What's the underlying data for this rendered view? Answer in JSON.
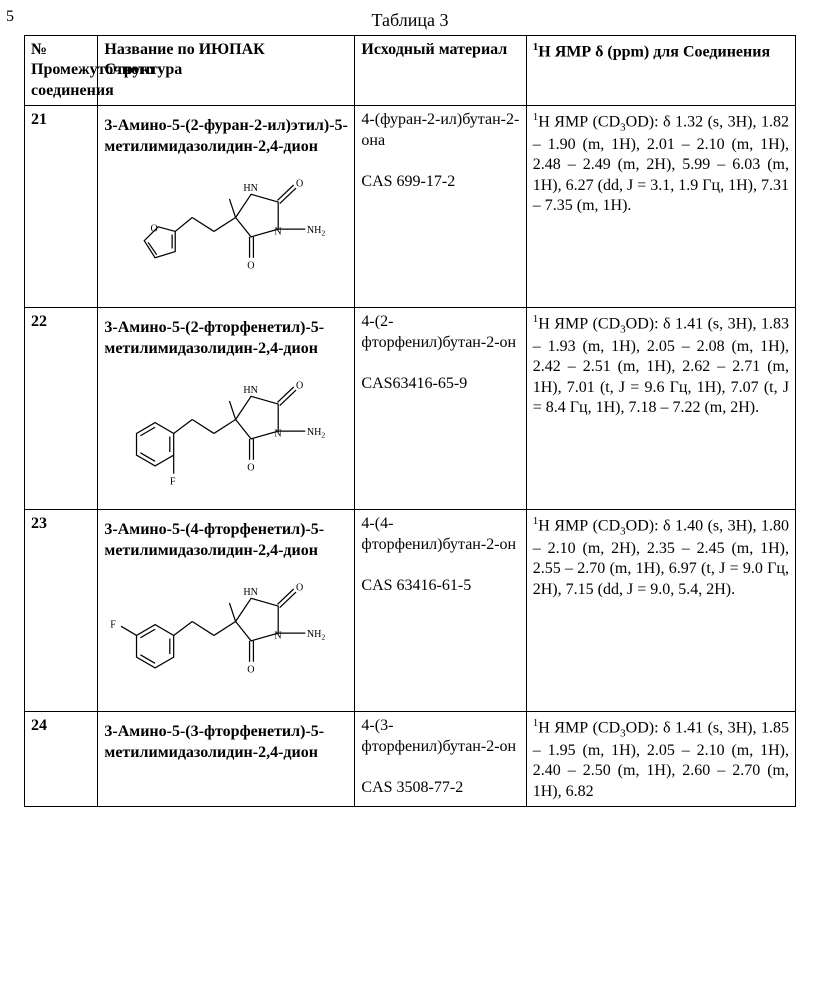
{
  "page_number": "5",
  "table_caption": "Таблица 3",
  "headers": {
    "col1": "№ Промежуточного соединения",
    "col2_line1": "Название по ИЮПАК",
    "col2_line2": "Структура",
    "col3": "Исходный материал",
    "col4_html": "<span class='sup'>1</span>H ЯМР δ (ppm) для Соединения"
  },
  "rows": [
    {
      "num": "21",
      "iupac": "3-Амино-5-(2-фуран-2-ил)этил)-5-метилимидазолидин-2,4-дион",
      "starting_html": "4-(фуран-2-ил)бутан-2-она<br><br>CAS 699-17-2",
      "nmr_html": "<span class='sup'>1</span>H ЯМР (CD<span class='sub'>3</span>OD): δ 1.32 (s, 3H), 1.82 – 1.90 (m, 1H), 2.01 – 2.10 (m, 1H), 2.48 – 2.49 (m, 2H), 5.99 – 6.03 (m, 1H), 6.27 (dd, J = 3.1, 1.9 Гц, 1H), 7.31 – 7.35 (m, 1H).",
      "structure": "furan"
    },
    {
      "num": "22",
      "iupac": "3-Амино-5-(2-фторфенетил)-5-метилимидазолидин-2,4-дион",
      "starting_html": "4-(2-фторфенил)бутан-2-он<br><br>CAS63416-65-9",
      "nmr_html": "<span class='sup'>1</span>H ЯМР (CD<span class='sub'>3</span>OD): δ 1.41 (s, 3H), 1.83 – 1.93 (m, 1H), 2.05 – 2.08 (m, 1H), 2.42 – 2.51 (m, 1H), 2.62 – 2.71 (m, 1H), 7.01 (t, J = 9.6 Гц, 1H), 7.07 (t, J = 8.4 Гц, 1H), 7.18 – 7.22 (m, 2H).",
      "structure": "f2"
    },
    {
      "num": "23",
      "iupac": "3-Амино-5-(4-фторфенетил)-5-метилимидазолидин-2,4-дион",
      "starting_html": "4-(4-фторфенил)бутан-2-он<br><br>CAS 63416-61-5",
      "nmr_html": "<span class='sup'>1</span>H ЯМР (CD<span class='sub'>3</span>OD): δ 1.40 (s, 3H), 1.80 – 2.10 (m, 2H), 2.35 – 2.45 (m, 1H), 2.55 – 2.70 (m, 1H), 6.97 (t, J = 9.0 Гц, 2H), 7.15 (dd, J = 9.0, 5.4, 2H).",
      "structure": "f4"
    },
    {
      "num": "24",
      "iupac": "3-Амино-5-(3-фторфенетил)-5-метилимидазолидин-2,4-дион",
      "starting_html": "4-(3-фторфенил)бутан-2-он<br><br>CAS 3508-77-2",
      "nmr_html": "<span class='sup'>1</span>H ЯМР (CD<span class='sub'>3</span>OD): δ 1.41 (s, 3H), 1.85 – 1.95 (m, 1H), 2.05 – 2.10 (m, 1H), 2.40 – 2.50 (m, 1H), 2.60 – 2.70 (m, 1H), 6.82",
      "structure": "none"
    }
  ],
  "style": {
    "font_family": "Times New Roman",
    "border_color": "#000000",
    "background": "#ffffff",
    "stroke_width": 1.6,
    "label_font_size": 13
  }
}
